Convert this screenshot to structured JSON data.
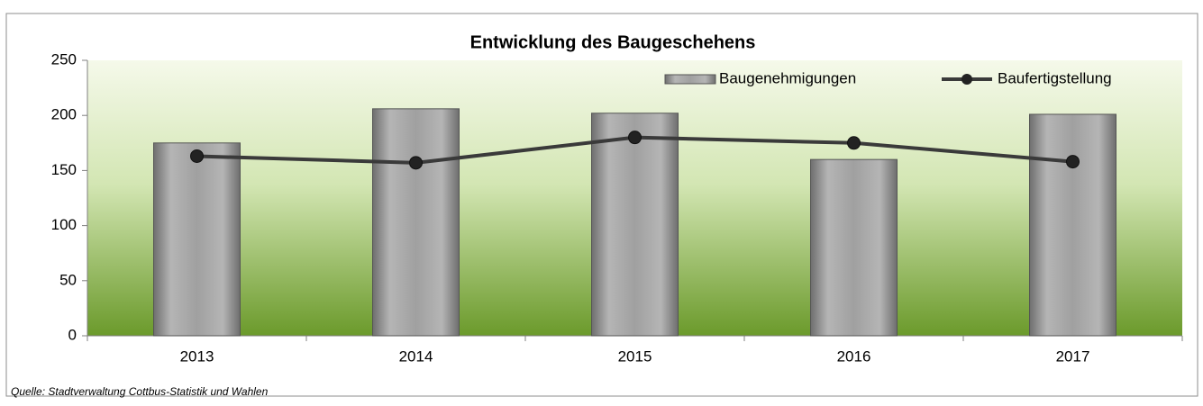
{
  "chart_data": {
    "type": "bar_line",
    "title": "Entwicklung des Baugeschehens",
    "categories": [
      "2013",
      "2014",
      "2015",
      "2016",
      "2017"
    ],
    "series": [
      {
        "name": "Baugenehmigungen",
        "type": "bar",
        "color": "#a6a6a6",
        "values": [
          175,
          206,
          202,
          160,
          201
        ]
      },
      {
        "name": "Baufertigstellung",
        "type": "line",
        "color": "#3a3a3a",
        "values": [
          163,
          157,
          180,
          175,
          158
        ]
      }
    ],
    "ylim": [
      0,
      250
    ],
    "yticks": [
      0,
      50,
      100,
      150,
      200,
      250
    ],
    "legend": "upper right",
    "source": "Quelle: Stadtverwaltung Cottbus-Statistik und Wahlen"
  }
}
